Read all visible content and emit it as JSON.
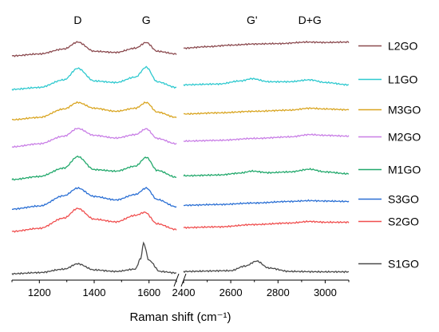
{
  "chart_data": {
    "type": "line",
    "title": "",
    "xlabel": "Raman shift (cm⁻¹)",
    "ylabel": "",
    "x_axis_break": true,
    "panels": [
      {
        "xlim": [
          1100,
          1700
        ],
        "ticks": [
          1200,
          1400,
          1600
        ]
      },
      {
        "xlim": [
          2400,
          3100
        ],
        "ticks": [
          2400,
          2600,
          2800,
          3000
        ]
      }
    ],
    "peak_labels": [
      {
        "text": "D",
        "x": 1340
      },
      {
        "text": "G",
        "x": 1590
      },
      {
        "text": "G'",
        "x": 2690
      },
      {
        "text": "D+G",
        "x": 2935
      }
    ],
    "legend_position": "right",
    "series": [
      {
        "name": "L2GO",
        "color": "#8b4a4f",
        "order": 8,
        "left": [
          [
            1100,
            0
          ],
          [
            1200,
            0.05
          ],
          [
            1290,
            0.18
          ],
          [
            1340,
            0.36
          ],
          [
            1400,
            0.12
          ],
          [
            1480,
            0.09
          ],
          [
            1550,
            0.2
          ],
          [
            1590,
            0.35
          ],
          [
            1630,
            0.12
          ],
          [
            1700,
            0.05
          ]
        ],
        "right": [
          [
            2400,
            0.2
          ],
          [
            2500,
            0.24
          ],
          [
            2600,
            0.28
          ],
          [
            2700,
            0.31
          ],
          [
            2800,
            0.32
          ],
          [
            2930,
            0.36
          ],
          [
            3000,
            0.35
          ],
          [
            3100,
            0.36
          ]
        ]
      },
      {
        "name": "L1GO",
        "color": "#2ec9cf",
        "order": 7,
        "left": [
          [
            1100,
            0
          ],
          [
            1200,
            0.05
          ],
          [
            1290,
            0.25
          ],
          [
            1340,
            0.55
          ],
          [
            1400,
            0.22
          ],
          [
            1480,
            0.18
          ],
          [
            1550,
            0.32
          ],
          [
            1590,
            0.58
          ],
          [
            1630,
            0.2
          ],
          [
            1700,
            0.05
          ]
        ],
        "right": [
          [
            2400,
            0.12
          ],
          [
            2550,
            0.14
          ],
          [
            2640,
            0.22
          ],
          [
            2690,
            0.28
          ],
          [
            2760,
            0.2
          ],
          [
            2850,
            0.2
          ],
          [
            2935,
            0.25
          ],
          [
            3000,
            0.18
          ],
          [
            3100,
            0.12
          ]
        ]
      },
      {
        "name": "M3GO",
        "color": "#d9a521",
        "order": 6,
        "left": [
          [
            1100,
            0
          ],
          [
            1200,
            0.06
          ],
          [
            1290,
            0.28
          ],
          [
            1340,
            0.45
          ],
          [
            1400,
            0.3
          ],
          [
            1480,
            0.22
          ],
          [
            1550,
            0.3
          ],
          [
            1590,
            0.45
          ],
          [
            1630,
            0.2
          ],
          [
            1700,
            0.06
          ]
        ],
        "right": [
          [
            2400,
            0.15
          ],
          [
            2550,
            0.18
          ],
          [
            2700,
            0.22
          ],
          [
            2850,
            0.25
          ],
          [
            2935,
            0.3
          ],
          [
            3000,
            0.28
          ],
          [
            3100,
            0.26
          ]
        ]
      },
      {
        "name": "M2GO",
        "color": "#c97fe6",
        "order": 5,
        "left": [
          [
            1100,
            0
          ],
          [
            1200,
            0.08
          ],
          [
            1290,
            0.28
          ],
          [
            1340,
            0.48
          ],
          [
            1400,
            0.3
          ],
          [
            1480,
            0.23
          ],
          [
            1550,
            0.32
          ],
          [
            1590,
            0.47
          ],
          [
            1630,
            0.22
          ],
          [
            1700,
            0.08
          ]
        ],
        "right": [
          [
            2400,
            0.15
          ],
          [
            2550,
            0.17
          ],
          [
            2700,
            0.22
          ],
          [
            2850,
            0.26
          ],
          [
            2935,
            0.32
          ],
          [
            3000,
            0.3
          ],
          [
            3100,
            0.28
          ]
        ]
      },
      {
        "name": "M1GO",
        "color": "#21a86b",
        "order": 4,
        "left": [
          [
            1100,
            0
          ],
          [
            1200,
            0.08
          ],
          [
            1290,
            0.3
          ],
          [
            1340,
            0.6
          ],
          [
            1400,
            0.26
          ],
          [
            1480,
            0.22
          ],
          [
            1550,
            0.35
          ],
          [
            1590,
            0.58
          ],
          [
            1630,
            0.24
          ],
          [
            1700,
            0.06
          ]
        ],
        "right": [
          [
            2400,
            0.1
          ],
          [
            2550,
            0.12
          ],
          [
            2640,
            0.17
          ],
          [
            2690,
            0.22
          ],
          [
            2760,
            0.18
          ],
          [
            2850,
            0.2
          ],
          [
            2935,
            0.27
          ],
          [
            3000,
            0.2
          ],
          [
            3100,
            0.15
          ]
        ]
      },
      {
        "name": "S3GO",
        "color": "#2a6fd4",
        "order": 3,
        "left": [
          [
            1100,
            0
          ],
          [
            1200,
            0.08
          ],
          [
            1290,
            0.35
          ],
          [
            1340,
            0.55
          ],
          [
            1400,
            0.33
          ],
          [
            1480,
            0.24
          ],
          [
            1550,
            0.38
          ],
          [
            1590,
            0.55
          ],
          [
            1630,
            0.25
          ],
          [
            1700,
            0.06
          ]
        ],
        "right": [
          [
            2400,
            0.1
          ],
          [
            2550,
            0.12
          ],
          [
            2700,
            0.16
          ],
          [
            2850,
            0.2
          ],
          [
            2935,
            0.22
          ],
          [
            3000,
            0.21
          ],
          [
            3100,
            0.2
          ]
        ]
      },
      {
        "name": "S2GO",
        "color": "#f04e4e",
        "order": 2,
        "left": [
          [
            1100,
            0
          ],
          [
            1200,
            0.08
          ],
          [
            1290,
            0.35
          ],
          [
            1340,
            0.6
          ],
          [
            1400,
            0.32
          ],
          [
            1480,
            0.25
          ],
          [
            1550,
            0.42
          ],
          [
            1585,
            0.5
          ],
          [
            1630,
            0.2
          ],
          [
            1700,
            0.05
          ]
        ],
        "right": [
          [
            2400,
            0.1
          ],
          [
            2550,
            0.12
          ],
          [
            2700,
            0.18
          ],
          [
            2850,
            0.22
          ],
          [
            2935,
            0.26
          ],
          [
            3000,
            0.24
          ],
          [
            3100,
            0.24
          ]
        ]
      },
      {
        "name": "S1GO",
        "color": "#4a4a4a",
        "order": 1,
        "left": [
          [
            1100,
            0
          ],
          [
            1200,
            0.03
          ],
          [
            1290,
            0.12
          ],
          [
            1340,
            0.26
          ],
          [
            1400,
            0.1
          ],
          [
            1480,
            0.06
          ],
          [
            1550,
            0.12
          ],
          [
            1570,
            0.4
          ],
          [
            1580,
            0.8
          ],
          [
            1600,
            0.35
          ],
          [
            1640,
            0.06
          ],
          [
            1700,
            0.02
          ]
        ],
        "right": [
          [
            2400,
            0.06
          ],
          [
            2600,
            0.08
          ],
          [
            2660,
            0.2
          ],
          [
            2710,
            0.33
          ],
          [
            2760,
            0.15
          ],
          [
            2850,
            0.06
          ],
          [
            3000,
            0.05
          ],
          [
            3100,
            0.05
          ]
        ]
      }
    ]
  }
}
